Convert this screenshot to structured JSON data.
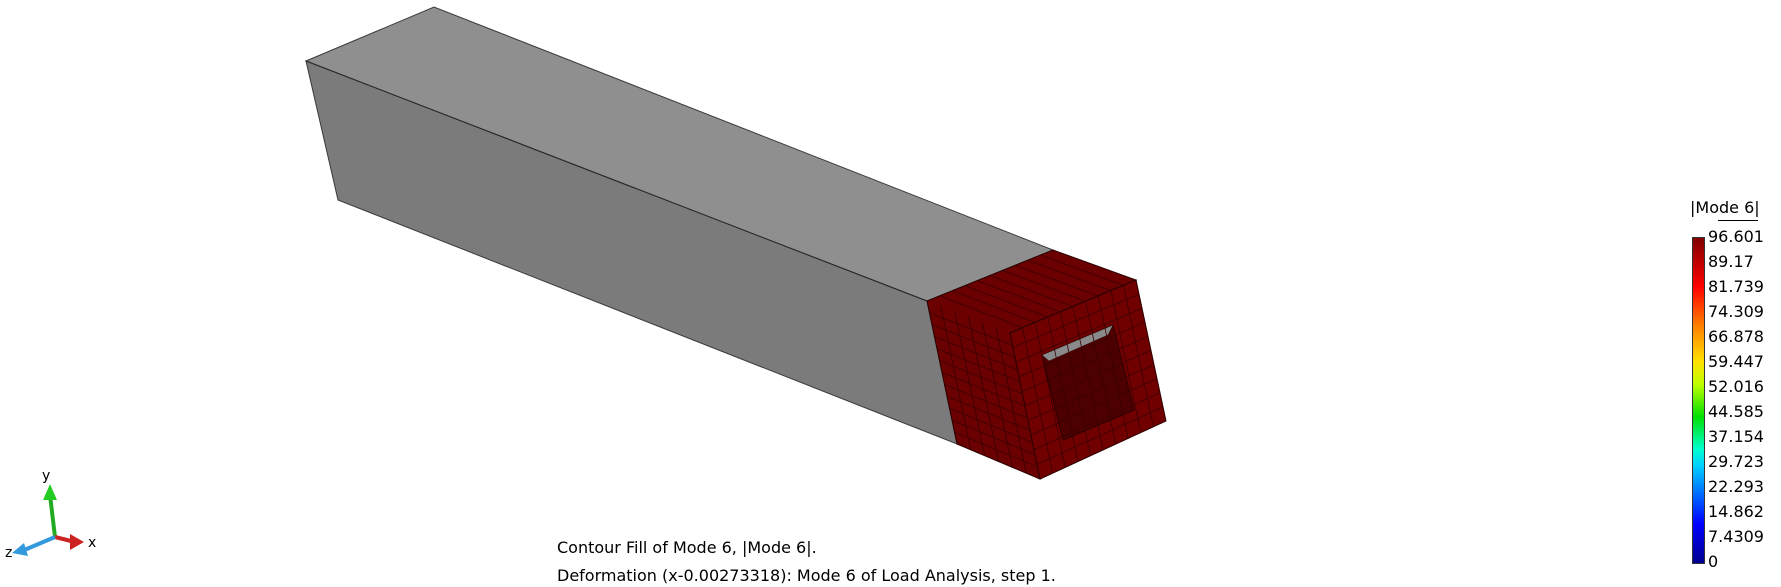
{
  "legend": {
    "title": "|Mode 6|",
    "values": [
      "96.601",
      "89.17",
      "81.739",
      "74.309",
      "66.878",
      "59.447",
      "52.016",
      "44.585",
      "37.154",
      "29.723",
      "22.293",
      "14.862",
      "7.4309",
      "0"
    ]
  },
  "caption": {
    "line1": "Contour Fill of Mode 6, |Mode 6|.",
    "line2": "Deformation (x-0.00273318): Mode 6 of Load Analysis, step 1."
  },
  "triad": {
    "x_label": "x",
    "y_label": "y",
    "z_label": "z"
  },
  "colors": {
    "beam_top": "#8e8e8e",
    "beam_side": "#7b7b7b",
    "end_face": "#6e0000",
    "mesh_line": "#3a0000"
  }
}
